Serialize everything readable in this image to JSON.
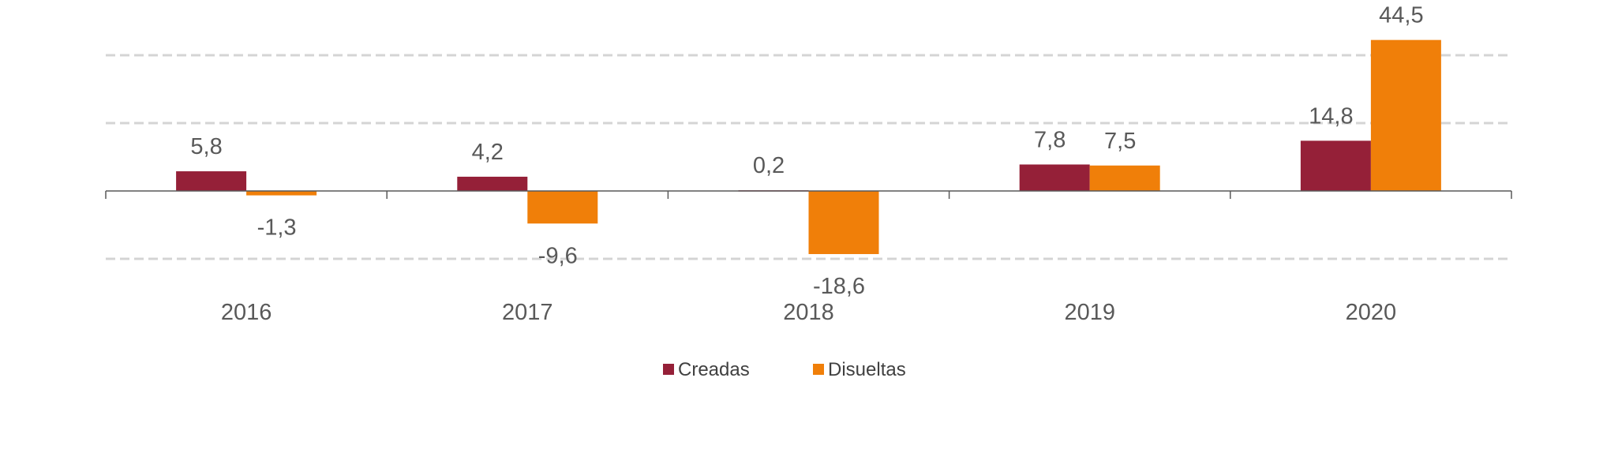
{
  "chart_data": {
    "type": "bar",
    "title": "",
    "xlabel": "",
    "ylabel": "",
    "categories": [
      "2016",
      "2017",
      "2018",
      "2019",
      "2020"
    ],
    "series": [
      {
        "name": "Creadas",
        "values": [
          5.8,
          4.2,
          0.2,
          7.8,
          14.8
        ],
        "labels": [
          "5,8",
          "4,2",
          "0,2",
          "7,8",
          "14,8"
        ],
        "color": "#952038"
      },
      {
        "name": "Disueltas",
        "values": [
          -1.3,
          -9.6,
          -18.6,
          7.5,
          44.5
        ],
        "labels": [
          "-1,3",
          "-9,6",
          "-18,6",
          "7,5",
          "44,5"
        ],
        "color": "#F07F09"
      }
    ],
    "ylim": [
      -20,
      50
    ],
    "gridlines": [
      -20,
      20,
      40
    ],
    "grid": true,
    "grid_style": "dashed",
    "y_tick_labels": false,
    "legend_position": "bottom"
  }
}
